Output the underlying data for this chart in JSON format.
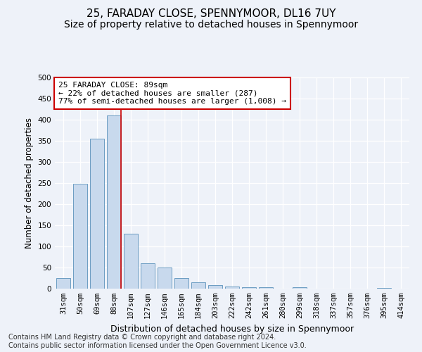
{
  "title1": "25, FARADAY CLOSE, SPENNYMOOR, DL16 7UY",
  "title2": "Size of property relative to detached houses in Spennymoor",
  "xlabel": "Distribution of detached houses by size in Spennymoor",
  "ylabel": "Number of detached properties",
  "categories": [
    "31sqm",
    "50sqm",
    "69sqm",
    "88sqm",
    "107sqm",
    "127sqm",
    "146sqm",
    "165sqm",
    "184sqm",
    "203sqm",
    "222sqm",
    "242sqm",
    "261sqm",
    "280sqm",
    "299sqm",
    "318sqm",
    "337sqm",
    "357sqm",
    "376sqm",
    "395sqm",
    "414sqm"
  ],
  "values": [
    25,
    248,
    355,
    410,
    130,
    60,
    50,
    25,
    15,
    8,
    5,
    3,
    3,
    0,
    3,
    0,
    0,
    0,
    0,
    2,
    0
  ],
  "bar_color": "#c8d9ed",
  "bar_edge_color": "#6b9cc2",
  "highlight_line_color": "#cc0000",
  "annotation_line1": "25 FARADAY CLOSE: 89sqm",
  "annotation_line2": "← 22% of detached houses are smaller (287)",
  "annotation_line3": "77% of semi-detached houses are larger (1,008) →",
  "annotation_box_color": "#ffffff",
  "annotation_box_edge_color": "#cc0000",
  "ylim": [
    0,
    500
  ],
  "yticks": [
    0,
    50,
    100,
    150,
    200,
    250,
    300,
    350,
    400,
    450,
    500
  ],
  "footer1": "Contains HM Land Registry data © Crown copyright and database right 2024.",
  "footer2": "Contains public sector information licensed under the Open Government Licence v3.0.",
  "bg_color": "#eef2f9",
  "grid_color": "#ffffff",
  "title1_fontsize": 11,
  "title2_fontsize": 10,
  "xlabel_fontsize": 9,
  "ylabel_fontsize": 8.5,
  "tick_fontsize": 7.5,
  "annotation_fontsize": 8,
  "footer_fontsize": 7
}
